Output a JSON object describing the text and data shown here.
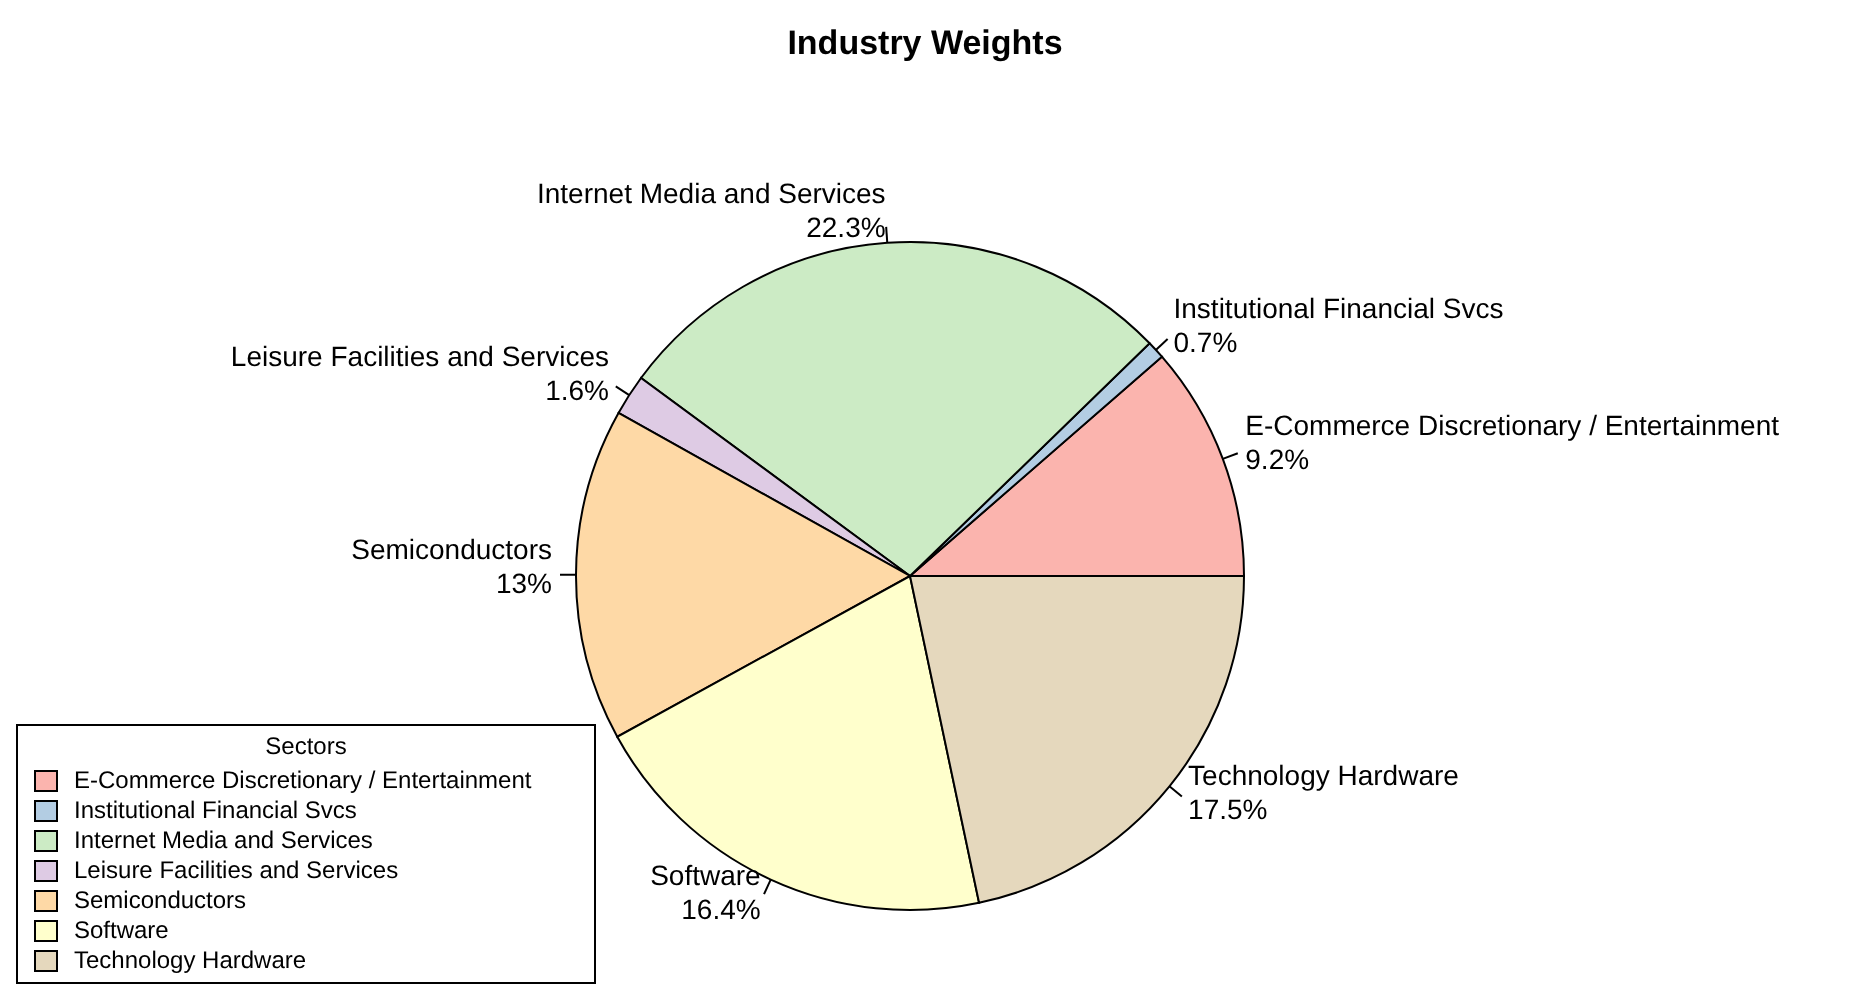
{
  "chart_data": {
    "type": "pie",
    "title": "Industry Weights",
    "legend_title": "Sectors",
    "legend": "bottom left",
    "categories": [
      "E-Commerce Discretionary / Entertainment",
      "Institutional Financial Svcs",
      "Internet Media and Services",
      "Leisure Facilities and Services",
      "Semiconductors",
      "Software",
      "Technology Hardware"
    ],
    "values": [
      9.2,
      0.7,
      22.3,
      1.6,
      13,
      16.4,
      17.5
    ],
    "value_labels": [
      "9.2%",
      "0.7%",
      "22.3%",
      "1.6%",
      "13%",
      "16.4%",
      "17.5%"
    ],
    "colors": [
      "#fbb4ae",
      "#b3cde3",
      "#ccebc5",
      "#decbe4",
      "#fed9a6",
      "#ffffcc",
      "#e5d8bd"
    ]
  }
}
